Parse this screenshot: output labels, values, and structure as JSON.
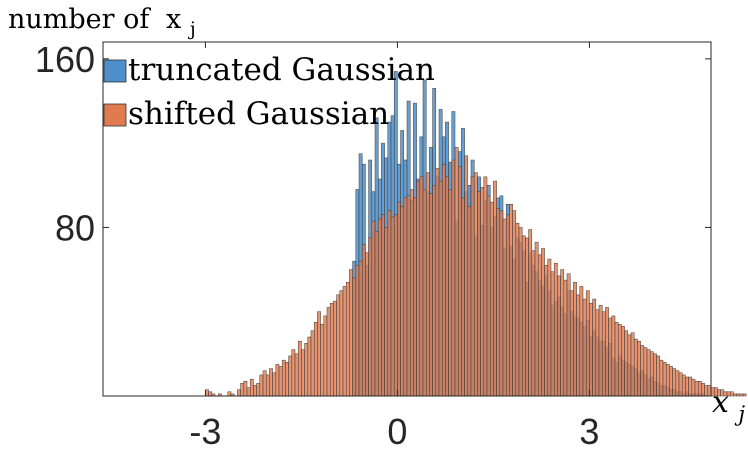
{
  "chart_data": {
    "type": "bar",
    "subtype": "overlapping-histogram",
    "ylabel": "number of",
    "ylabel_var": "x",
    "ylabel_sub": "j",
    "xlabel_var": "x",
    "xlabel_sub": "j",
    "xlim": [
      -4.6,
      4.9
    ],
    "ylim": [
      0,
      168
    ],
    "xticks": [
      -3,
      0,
      3
    ],
    "xtick_labels": [
      "-3",
      "0",
      "3"
    ],
    "yticks": [
      80,
      160
    ],
    "ytick_labels": [
      "80",
      "160"
    ],
    "bin_width": 0.05,
    "legend_position": "top-left",
    "series": [
      {
        "name": "truncated Gaussian",
        "color": "#4e8ec9",
        "opacity": 0.85,
        "x_start": -0.7,
        "values": [
          64,
          98,
          115,
          110,
          62,
          112,
          97,
          132,
          103,
          120,
          113,
          130,
          133,
          154,
          110,
          126,
          112,
          140,
          93,
          139,
          103,
          123,
          150,
          97,
          118,
          146,
          104,
          136,
          123,
          130,
          111,
          135,
          83,
          116,
          127,
          97,
          100,
          112,
          76,
          104,
          81,
          93,
          100,
          80,
          85,
          94,
          95,
          70,
          91,
          71,
          65,
          75,
          73,
          69,
          54,
          68,
          62,
          59,
          55,
          52,
          57,
          50,
          43,
          45,
          47,
          42,
          39,
          50,
          40,
          38,
          37,
          35,
          33,
          36,
          28,
          31,
          28,
          26,
          26,
          23,
          25,
          18,
          16,
          19,
          17,
          16,
          15,
          14,
          13,
          11,
          12,
          10,
          8,
          9,
          7,
          6,
          5,
          5,
          4,
          3,
          3,
          2,
          2,
          1,
          2,
          1,
          1,
          1,
          1,
          1
        ]
      },
      {
        "name": "shifted Gaussian",
        "color": "#e07b4f",
        "opacity": 0.8,
        "x_start": -3.0,
        "values": [
          3,
          2,
          1,
          0,
          1,
          0,
          0,
          2,
          1,
          0,
          3,
          6,
          7,
          4,
          8,
          5,
          6,
          10,
          12,
          10,
          13,
          11,
          15,
          14,
          17,
          16,
          19,
          22,
          20,
          26,
          22,
          25,
          28,
          31,
          35,
          40,
          34,
          38,
          42,
          44,
          45,
          48,
          50,
          52,
          54,
          60,
          56,
          62,
          64,
          72,
          68,
          75,
          83,
          78,
          84,
          86,
          80,
          88,
          85,
          86,
          92,
          90,
          94,
          95,
          98,
          94,
          102,
          104,
          98,
          106,
          96,
          100,
          108,
          102,
          110,
          104,
          98,
          112,
          118,
          109,
          94,
          114,
          90,
          104,
          106,
          97,
          99,
          104,
          95,
          92,
          102,
          89,
          88,
          84,
          86,
          91,
          88,
          82,
          80,
          76,
          75,
          79,
          69,
          73,
          67,
          70,
          62,
          65,
          59,
          63,
          57,
          60,
          55,
          58,
          50,
          54,
          48,
          52,
          46,
          50,
          44,
          46,
          41,
          43,
          40,
          42,
          37,
          38,
          35,
          34,
          33,
          31,
          29,
          30,
          27,
          26,
          24,
          23,
          22,
          21,
          20,
          19,
          17,
          16,
          15,
          14,
          13,
          12,
          11,
          10,
          9,
          9,
          8,
          7,
          7,
          6,
          5,
          5,
          4,
          4,
          3,
          3,
          2,
          2,
          2,
          1,
          1,
          1,
          1,
          0,
          1,
          0,
          1,
          0,
          0,
          0,
          1,
          0,
          0,
          0,
          0
        ]
      }
    ]
  }
}
